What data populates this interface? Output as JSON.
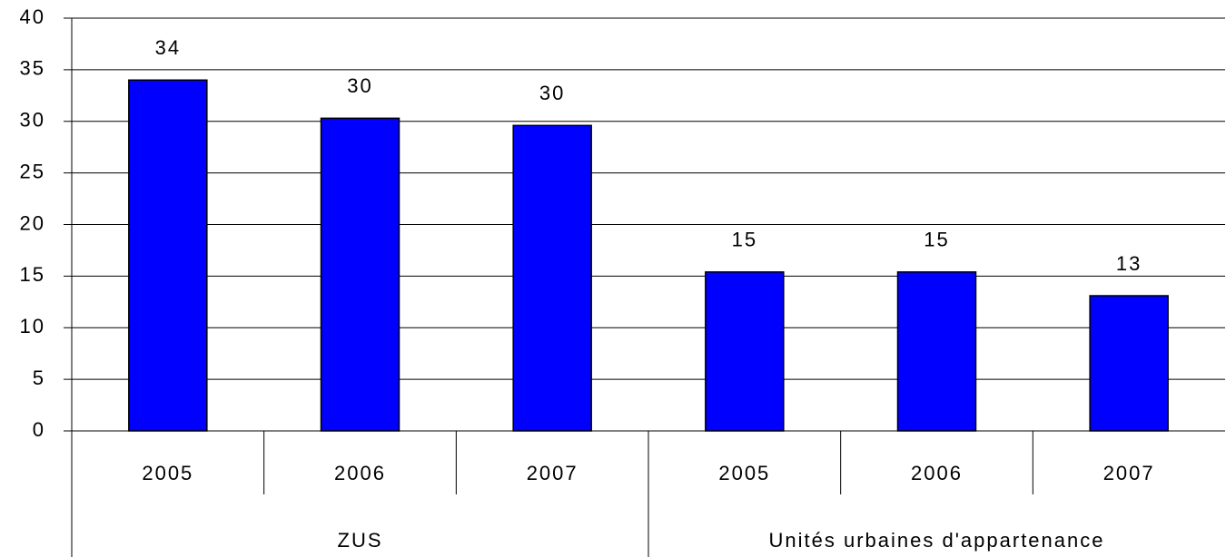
{
  "chart_data": {
    "type": "bar",
    "color": "#0000ff",
    "grid": true,
    "ylim": [
      0,
      40
    ],
    "yticks": [
      0,
      5,
      10,
      15,
      20,
      25,
      30,
      35,
      40
    ],
    "groups": [
      {
        "name": "ZUS",
        "categories": [
          "2005",
          "2006",
          "2007"
        ],
        "values": [
          34.0,
          30.3,
          29.6
        ],
        "value_labels": [
          "34",
          "30",
          "30"
        ]
      },
      {
        "name": "Unités urbaines d'appartenance",
        "categories": [
          "2005",
          "2006",
          "2007"
        ],
        "values": [
          15.4,
          15.4,
          13.1
        ],
        "value_labels": [
          "15",
          "15",
          "13"
        ]
      }
    ]
  }
}
